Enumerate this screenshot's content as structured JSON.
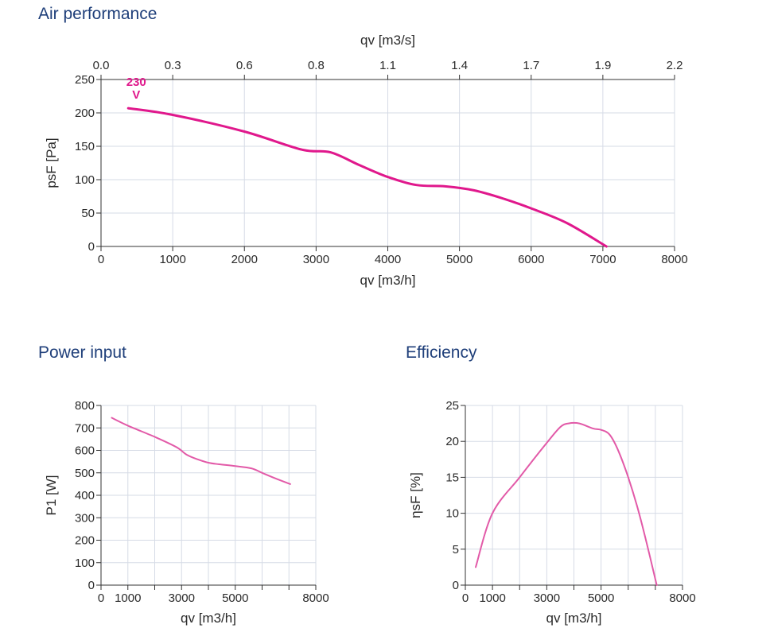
{
  "sections": {
    "air": "Air performance",
    "power": "Power input",
    "efficiency": "Efficiency"
  },
  "colors": {
    "curve": "#e0188c",
    "curve_light": "#e25aa8",
    "grid": "#d6dbe6",
    "title": "#1f3f7a"
  },
  "chart_data": [
    {
      "id": "air",
      "type": "line",
      "title": "Air performance",
      "xlabel": "qv [m3/h]",
      "ylabel": "psF [Pa]",
      "x2label": "qv [m3/s]",
      "xlim": [
        0,
        8000
      ],
      "ylim": [
        0,
        250
      ],
      "xticks": [
        0,
        1000,
        2000,
        3000,
        4000,
        5000,
        6000,
        7000,
        8000
      ],
      "yticks": [
        0,
        50,
        100,
        150,
        200,
        250
      ],
      "x2ticks": [
        "0.0",
        "0.3",
        "0.6",
        "0.8",
        "1.1",
        "1.4",
        "1.7",
        "1.9",
        "2.2"
      ],
      "grid": true,
      "annotation": {
        "line1": "230",
        "line2": "V"
      },
      "series": [
        {
          "x": [
            380,
            1000,
            2000,
            2800,
            3200,
            3600,
            4000,
            4400,
            4800,
            5200,
            5600,
            6000,
            6500,
            7050
          ],
          "y": [
            207,
            197,
            172,
            145,
            141,
            122,
            104,
            92,
            90,
            84,
            72,
            57,
            35,
            0
          ]
        }
      ]
    },
    {
      "id": "power",
      "type": "line",
      "title": "Power input",
      "xlabel": "qv [m3/h]",
      "ylabel": "P1 [W]",
      "xlim": [
        0,
        8000
      ],
      "ylim": [
        0,
        800
      ],
      "xticks": [
        0,
        1000,
        3000,
        5000,
        8000
      ],
      "xticks_unlabeled": [
        2000,
        4000,
        6000,
        7000
      ],
      "yticks": [
        0,
        100,
        200,
        300,
        400,
        500,
        600,
        700,
        800
      ],
      "grid": true,
      "series": [
        {
          "x": [
            400,
            1000,
            2000,
            2800,
            3200,
            3600,
            4000,
            4400,
            5000,
            5600,
            6000,
            6500,
            7050
          ],
          "y": [
            745,
            710,
            660,
            615,
            580,
            560,
            545,
            538,
            530,
            520,
            500,
            475,
            450
          ]
        }
      ]
    },
    {
      "id": "efficiency",
      "type": "line",
      "title": "Efficiency",
      "xlabel": "qv [m3/h]",
      "ylabel": "ηsF [%]",
      "xlim": [
        0,
        8000
      ],
      "ylim": [
        0,
        25
      ],
      "xticks": [
        0,
        1000,
        3000,
        5000,
        8000
      ],
      "xticks_unlabeled": [
        2000,
        4000,
        6000,
        7000
      ],
      "yticks": [
        0,
        5,
        10,
        15,
        20,
        25
      ],
      "grid": true,
      "series": [
        {
          "x": [
            380,
            1000,
            2000,
            3000,
            3500,
            3800,
            4200,
            4700,
            5000,
            5300,
            5600,
            6000,
            6400,
            6800,
            7050
          ],
          "y": [
            2.5,
            10,
            15,
            19.8,
            22.0,
            22.5,
            22.5,
            21.8,
            21.6,
            21.0,
            19.0,
            15.0,
            10.0,
            4.0,
            0
          ]
        }
      ]
    }
  ]
}
